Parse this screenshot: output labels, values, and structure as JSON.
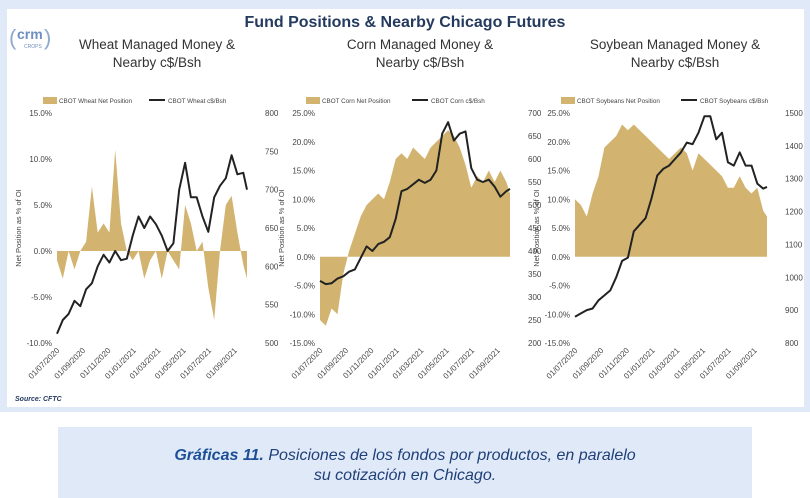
{
  "logo": {
    "brand": "crm",
    "sub": "CROPS"
  },
  "figure_title": "Fund Positions & Nearby Chicago Futures",
  "source": "Source: CFTC",
  "caption": {
    "bold": "Gráficas 11.",
    "line1": "Posiciones de los fondos por productos, en paralelo",
    "line2": "su cotización en Chicago."
  },
  "colors": {
    "net_position_fill": "#d2b470",
    "price_line": "#222222",
    "background": "#dfe9f8",
    "caption_text": "#1f3f78"
  },
  "chart_data": [
    {
      "type": "area",
      "title_line1": "Wheat Managed Money &",
      "title_line2": "Nearby c$/Bsh",
      "ylabel": "Net Position as % of OI",
      "legend": [
        "CBOT Wheat Net Position",
        "CBOT Wheat c$/Bsh"
      ],
      "legend_position": "top",
      "left_axis": {
        "min": -10,
        "max": 15,
        "ticks": [
          "-10.0%",
          "-5.0%",
          "0.0%",
          "5.0%",
          "10.0%",
          "15.0%"
        ]
      },
      "right_axis": {
        "min": 500,
        "max": 800,
        "ticks": [
          "500",
          "550",
          "600",
          "650",
          "700",
          "750",
          "800"
        ]
      },
      "x_ticks": [
        "01/07/2020",
        "01/09/2020",
        "01/11/2020",
        "01/01/2021",
        "01/03/2021",
        "01/05/2021",
        "01/07/2021",
        "01/09/2021"
      ],
      "x_range": [
        "2020-07-01",
        "2021-10-01"
      ],
      "net_position": [
        [
          "2020-07-01",
          -1
        ],
        [
          "2020-07-15",
          -3
        ],
        [
          "2020-07-29",
          0
        ],
        [
          "2020-08-12",
          -2
        ],
        [
          "2020-08-26",
          0
        ],
        [
          "2020-09-09",
          1
        ],
        [
          "2020-09-23",
          7
        ],
        [
          "2020-10-07",
          2
        ],
        [
          "2020-10-21",
          3
        ],
        [
          "2020-11-04",
          2
        ],
        [
          "2020-11-18",
          11
        ],
        [
          "2020-12-02",
          3
        ],
        [
          "2020-12-16",
          0
        ],
        [
          "2020-12-30",
          -1
        ],
        [
          "2021-01-13",
          0
        ],
        [
          "2021-01-27",
          -3
        ],
        [
          "2021-02-10",
          -1
        ],
        [
          "2021-02-24",
          0
        ],
        [
          "2021-03-10",
          -3
        ],
        [
          "2021-03-24",
          0
        ],
        [
          "2021-04-07",
          -1
        ],
        [
          "2021-04-21",
          -2
        ],
        [
          "2021-05-05",
          5
        ],
        [
          "2021-05-19",
          3
        ],
        [
          "2021-06-02",
          0
        ],
        [
          "2021-06-16",
          1
        ],
        [
          "2021-06-30",
          -4
        ],
        [
          "2021-07-14",
          -7.5
        ],
        [
          "2021-07-28",
          0
        ],
        [
          "2021-08-11",
          5
        ],
        [
          "2021-08-25",
          6
        ],
        [
          "2021-09-08",
          2
        ],
        [
          "2021-09-22",
          -1.5
        ],
        [
          "2021-10-01",
          -3
        ]
      ],
      "price": [
        [
          "2020-07-01",
          512
        ],
        [
          "2020-07-15",
          530
        ],
        [
          "2020-07-29",
          538
        ],
        [
          "2020-08-12",
          555
        ],
        [
          "2020-08-26",
          548
        ],
        [
          "2020-09-09",
          570
        ],
        [
          "2020-09-23",
          578
        ],
        [
          "2020-10-07",
          600
        ],
        [
          "2020-10-21",
          615
        ],
        [
          "2020-11-04",
          605
        ],
        [
          "2020-11-18",
          620
        ],
        [
          "2020-12-02",
          608
        ],
        [
          "2020-12-16",
          610
        ],
        [
          "2020-12-30",
          640
        ],
        [
          "2021-01-13",
          665
        ],
        [
          "2021-01-27",
          650
        ],
        [
          "2021-02-10",
          665
        ],
        [
          "2021-02-24",
          655
        ],
        [
          "2021-03-10",
          640
        ],
        [
          "2021-03-24",
          620
        ],
        [
          "2021-04-07",
          630
        ],
        [
          "2021-04-21",
          700
        ],
        [
          "2021-05-05",
          735
        ],
        [
          "2021-05-19",
          690
        ],
        [
          "2021-06-02",
          690
        ],
        [
          "2021-06-16",
          665
        ],
        [
          "2021-06-30",
          645
        ],
        [
          "2021-07-14",
          690
        ],
        [
          "2021-07-28",
          705
        ],
        [
          "2021-08-11",
          715
        ],
        [
          "2021-08-25",
          745
        ],
        [
          "2021-09-08",
          720
        ],
        [
          "2021-09-22",
          722
        ],
        [
          "2021-10-01",
          700
        ]
      ]
    },
    {
      "type": "area",
      "title_line1": "Corn Managed Money &",
      "title_line2": "Nearby c$/Bsh",
      "ylabel": "Net Position as % of OI",
      "legend": [
        "CBOT Corn Net Position",
        "CBOT Corn c$/Bsh"
      ],
      "legend_position": "top",
      "left_axis": {
        "min": -15,
        "max": 25,
        "ticks": [
          "-15.0%",
          "-10.0%",
          "-5.0%",
          "0.0%",
          "5.0%",
          "10.0%",
          "15.0%",
          "20.0%",
          "25.0%"
        ]
      },
      "right_axis": {
        "min": 200,
        "max": 700,
        "ticks": [
          "200",
          "250",
          "300",
          "350",
          "400",
          "450",
          "500",
          "550",
          "600",
          "650",
          "700"
        ]
      },
      "x_ticks": [
        "01/07/2020",
        "01/09/2020",
        "01/11/2020",
        "01/01/2021",
        "01/03/2021",
        "01/05/2021",
        "01/07/2021",
        "01/09/2021"
      ],
      "x_range": [
        "2020-07-01",
        "2021-10-01"
      ],
      "net_position": [
        [
          "2020-07-01",
          -11
        ],
        [
          "2020-07-15",
          -12
        ],
        [
          "2020-07-29",
          -9
        ],
        [
          "2020-08-12",
          -10
        ],
        [
          "2020-08-26",
          -3
        ],
        [
          "2020-09-09",
          1
        ],
        [
          "2020-09-23",
          4
        ],
        [
          "2020-10-07",
          7
        ],
        [
          "2020-10-21",
          9
        ],
        [
          "2020-11-04",
          10
        ],
        [
          "2020-11-18",
          11
        ],
        [
          "2020-12-02",
          10
        ],
        [
          "2020-12-16",
          13
        ],
        [
          "2020-12-30",
          17
        ],
        [
          "2021-01-13",
          18
        ],
        [
          "2021-01-27",
          17
        ],
        [
          "2021-02-10",
          19
        ],
        [
          "2021-02-24",
          18
        ],
        [
          "2021-03-10",
          17
        ],
        [
          "2021-03-24",
          19
        ],
        [
          "2021-04-07",
          20
        ],
        [
          "2021-04-21",
          21
        ],
        [
          "2021-05-05",
          22
        ],
        [
          "2021-05-19",
          21
        ],
        [
          "2021-06-02",
          19
        ],
        [
          "2021-06-16",
          16
        ],
        [
          "2021-06-30",
          12
        ],
        [
          "2021-07-14",
          14
        ],
        [
          "2021-07-28",
          13
        ],
        [
          "2021-08-11",
          15
        ],
        [
          "2021-08-25",
          13
        ],
        [
          "2021-09-08",
          15
        ],
        [
          "2021-09-22",
          13
        ],
        [
          "2021-10-01",
          11
        ]
      ],
      "price": [
        [
          "2020-07-01",
          335
        ],
        [
          "2020-07-15",
          328
        ],
        [
          "2020-07-29",
          330
        ],
        [
          "2020-08-12",
          340
        ],
        [
          "2020-08-26",
          345
        ],
        [
          "2020-09-09",
          355
        ],
        [
          "2020-09-23",
          360
        ],
        [
          "2020-10-07",
          385
        ],
        [
          "2020-10-21",
          410
        ],
        [
          "2020-11-04",
          400
        ],
        [
          "2020-11-18",
          415
        ],
        [
          "2020-12-02",
          420
        ],
        [
          "2020-12-16",
          430
        ],
        [
          "2020-12-30",
          470
        ],
        [
          "2021-01-13",
          530
        ],
        [
          "2021-01-27",
          535
        ],
        [
          "2021-02-10",
          545
        ],
        [
          "2021-02-24",
          555
        ],
        [
          "2021-03-10",
          548
        ],
        [
          "2021-03-24",
          555
        ],
        [
          "2021-04-07",
          575
        ],
        [
          "2021-04-21",
          655
        ],
        [
          "2021-05-05",
          680
        ],
        [
          "2021-05-19",
          640
        ],
        [
          "2021-06-02",
          655
        ],
        [
          "2021-06-16",
          660
        ],
        [
          "2021-06-30",
          580
        ],
        [
          "2021-07-14",
          555
        ],
        [
          "2021-07-28",
          550
        ],
        [
          "2021-08-11",
          555
        ],
        [
          "2021-08-25",
          540
        ],
        [
          "2021-09-08",
          518
        ],
        [
          "2021-09-22",
          530
        ],
        [
          "2021-10-01",
          535
        ]
      ]
    },
    {
      "type": "area",
      "title_line1": "Soybean Managed Money &",
      "title_line2": "Nearby c$/Bsh",
      "ylabel": "Net Position as % of OI",
      "legend": [
        "CBOT Soybeans Net Position",
        "CBOT Soybeans c$/Bsh"
      ],
      "legend_position": "top",
      "left_axis": {
        "min": -15,
        "max": 25,
        "ticks": [
          "-15.0%",
          "-10.0%",
          "-5.0%",
          "0.0%",
          "5.0%",
          "10.0%",
          "15.0%",
          "20.0%",
          "25.0%"
        ]
      },
      "right_axis": {
        "min": 800,
        "max": 1500,
        "ticks": [
          "800",
          "900",
          "1000",
          "1100",
          "1200",
          "1300",
          "1400",
          "1500"
        ]
      },
      "x_ticks": [
        "01/07/2020",
        "01/09/2020",
        "01/11/2020",
        "01/01/2021",
        "01/03/2021",
        "01/05/2021",
        "01/07/2021",
        "01/09/2021"
      ],
      "x_range": [
        "2020-07-01",
        "2021-10-01"
      ],
      "net_position": [
        [
          "2020-07-01",
          10
        ],
        [
          "2020-07-15",
          9
        ],
        [
          "2020-07-29",
          7
        ],
        [
          "2020-08-12",
          11
        ],
        [
          "2020-08-26",
          14
        ],
        [
          "2020-09-09",
          19
        ],
        [
          "2020-09-23",
          20
        ],
        [
          "2020-10-07",
          21
        ],
        [
          "2020-10-21",
          23
        ],
        [
          "2020-11-04",
          22
        ],
        [
          "2020-11-18",
          23
        ],
        [
          "2020-12-02",
          22
        ],
        [
          "2020-12-16",
          21
        ],
        [
          "2020-12-30",
          20
        ],
        [
          "2021-01-13",
          19
        ],
        [
          "2021-01-27",
          18
        ],
        [
          "2021-02-10",
          17
        ],
        [
          "2021-02-24",
          18
        ],
        [
          "2021-03-10",
          19
        ],
        [
          "2021-03-24",
          18
        ],
        [
          "2021-04-07",
          15
        ],
        [
          "2021-04-21",
          18
        ],
        [
          "2021-05-05",
          17
        ],
        [
          "2021-05-19",
          16
        ],
        [
          "2021-06-02",
          15
        ],
        [
          "2021-06-16",
          14
        ],
        [
          "2021-06-30",
          12
        ],
        [
          "2021-07-14",
          12
        ],
        [
          "2021-07-28",
          14
        ],
        [
          "2021-08-11",
          12
        ],
        [
          "2021-08-25",
          11
        ],
        [
          "2021-09-08",
          12
        ],
        [
          "2021-09-22",
          8
        ],
        [
          "2021-10-01",
          7
        ]
      ],
      "price": [
        [
          "2020-07-01",
          880
        ],
        [
          "2020-07-15",
          890
        ],
        [
          "2020-07-29",
          900
        ],
        [
          "2020-08-12",
          905
        ],
        [
          "2020-08-26",
          930
        ],
        [
          "2020-09-09",
          945
        ],
        [
          "2020-09-23",
          960
        ],
        [
          "2020-10-07",
          1000
        ],
        [
          "2020-10-21",
          1050
        ],
        [
          "2020-11-04",
          1060
        ],
        [
          "2020-11-18",
          1140
        ],
        [
          "2020-12-02",
          1160
        ],
        [
          "2020-12-16",
          1180
        ],
        [
          "2020-12-30",
          1240
        ],
        [
          "2021-01-13",
          1310
        ],
        [
          "2021-01-27",
          1330
        ],
        [
          "2021-02-10",
          1340
        ],
        [
          "2021-02-24",
          1360
        ],
        [
          "2021-03-10",
          1380
        ],
        [
          "2021-03-24",
          1410
        ],
        [
          "2021-04-07",
          1405
        ],
        [
          "2021-04-21",
          1440
        ],
        [
          "2021-05-05",
          1490
        ],
        [
          "2021-05-19",
          1490
        ],
        [
          "2021-06-02",
          1420
        ],
        [
          "2021-06-16",
          1440
        ],
        [
          "2021-06-30",
          1350
        ],
        [
          "2021-07-14",
          1340
        ],
        [
          "2021-07-28",
          1380
        ],
        [
          "2021-08-11",
          1340
        ],
        [
          "2021-08-25",
          1340
        ],
        [
          "2021-09-08",
          1285
        ],
        [
          "2021-09-22",
          1270
        ],
        [
          "2021-10-01",
          1275
        ]
      ]
    }
  ]
}
